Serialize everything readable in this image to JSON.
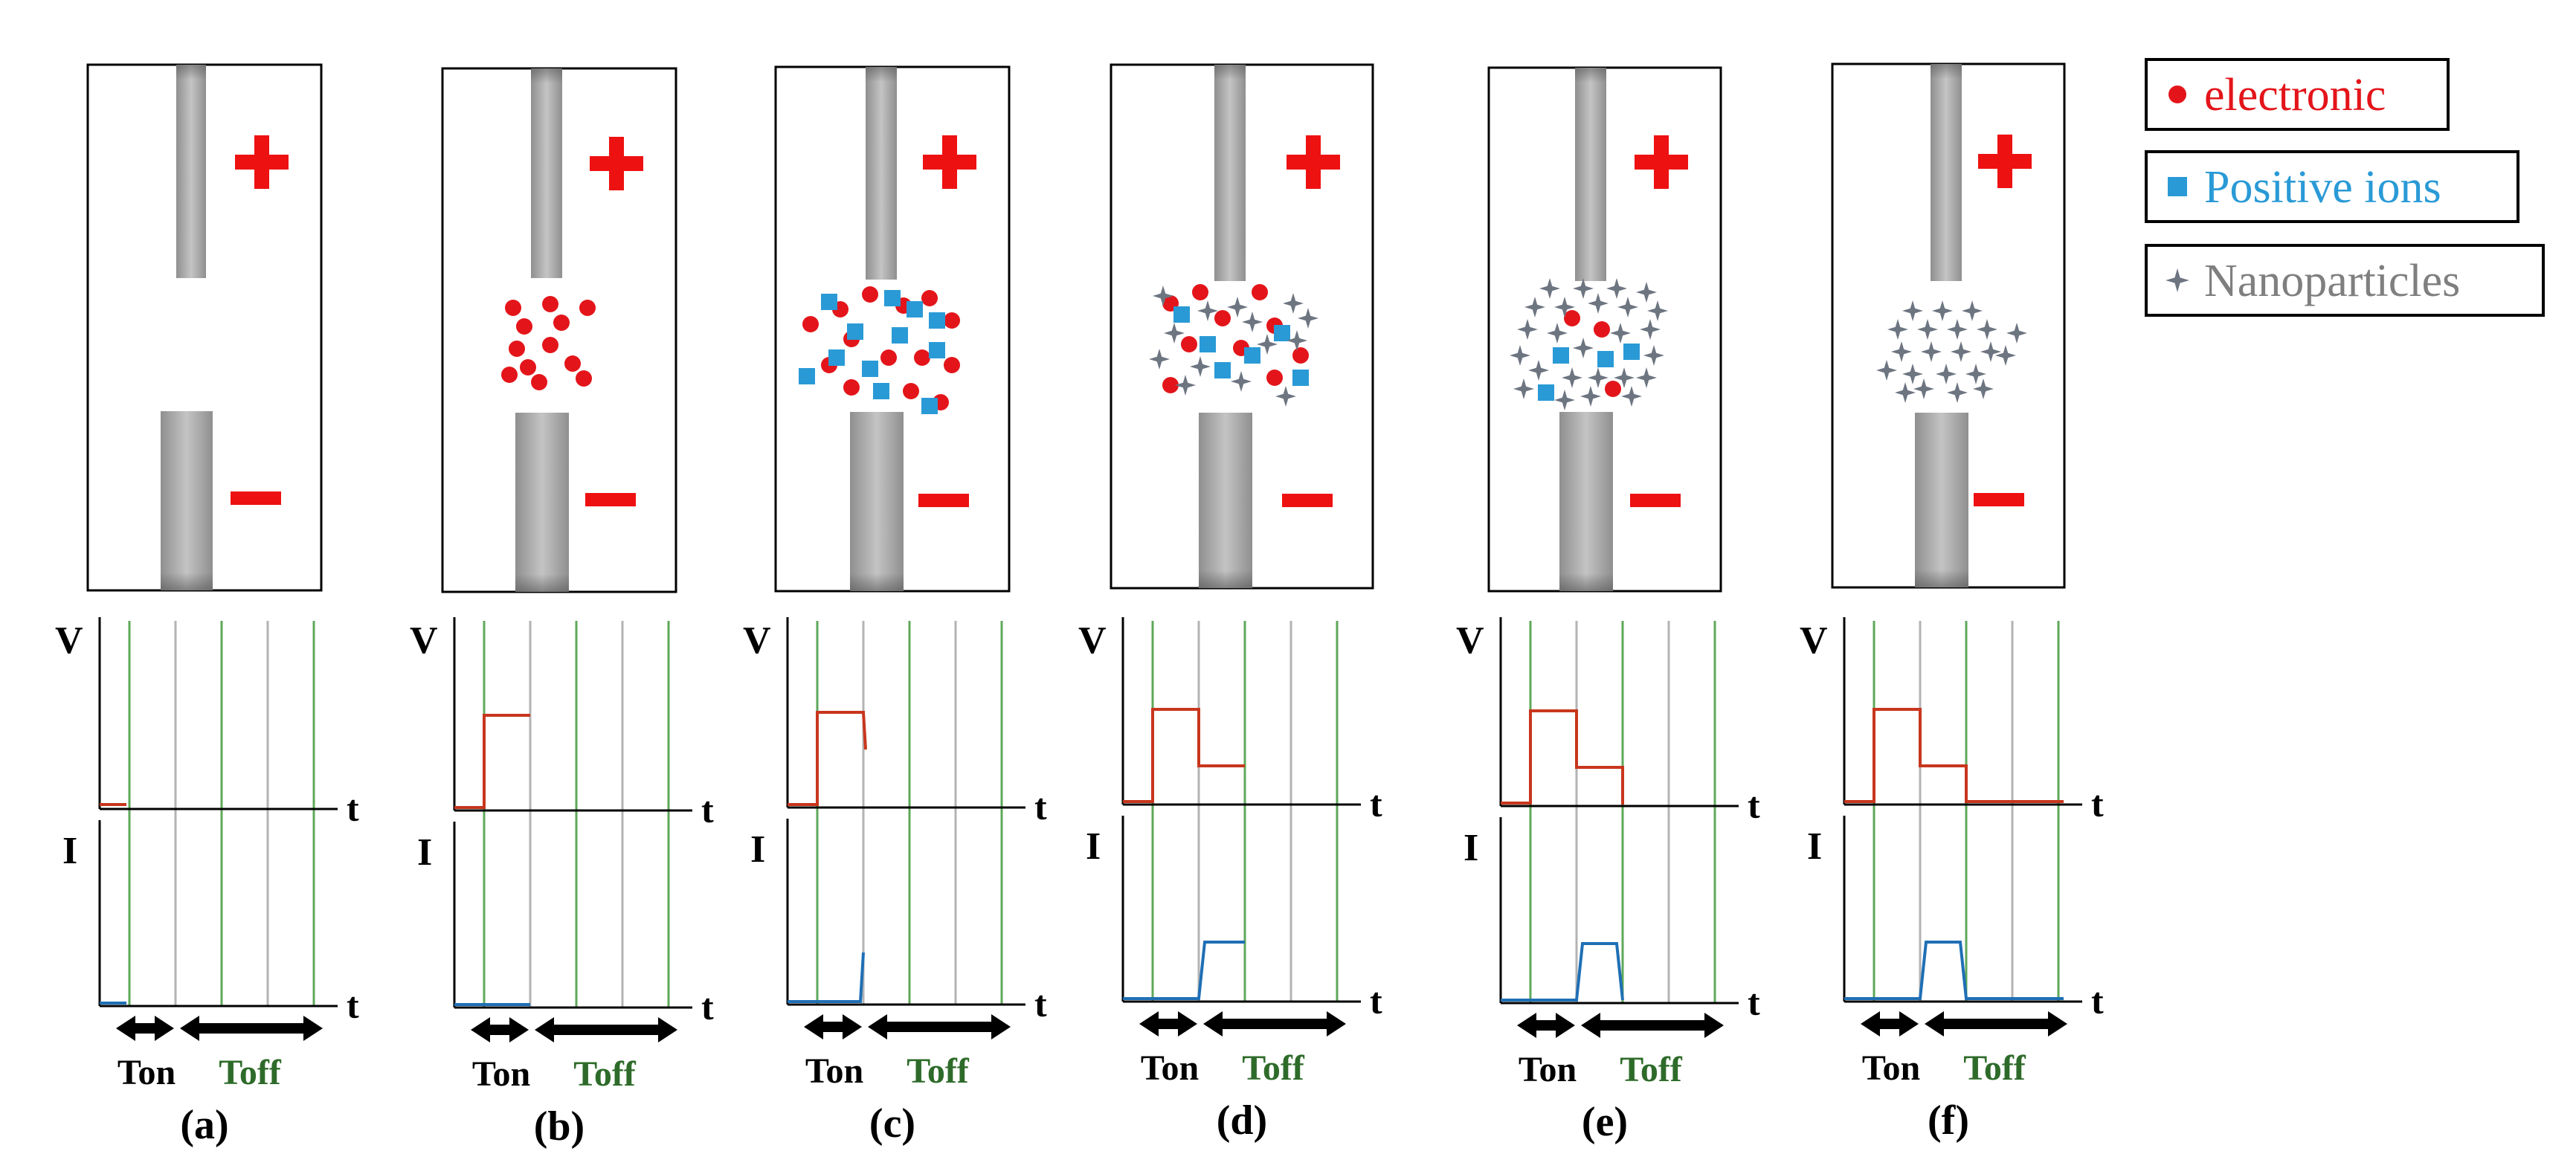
{
  "figure": {
    "panels": [
      {
        "label": "(a)",
        "stage": 0
      },
      {
        "label": "(b)",
        "stage": 1
      },
      {
        "label": "(c)",
        "stage": 2
      },
      {
        "label": "(d)",
        "stage": 3
      },
      {
        "label": "(e)",
        "stage": 4
      },
      {
        "label": "(f)",
        "stage": 5
      }
    ],
    "electrode_signs": {
      "positive": "+",
      "negative": "−"
    },
    "axis_labels": {
      "voltage": "V",
      "current": "I",
      "time": "t"
    },
    "interval_labels": {
      "on": "Ton",
      "off": "Toff"
    },
    "legend": [
      {
        "key": "electron",
        "label": "electronic",
        "color": "#e3151a"
      },
      {
        "key": "ion",
        "label": "Positive ions",
        "color": "#2a9ad6"
      },
      {
        "key": "nano",
        "label": "Nanoparticles",
        "color": "#8a8a8a"
      }
    ],
    "colors": {
      "voltage_trace": "#c8361d",
      "current_trace": "#1f6fb5",
      "on_gridline": "#5ea85a",
      "off_gridline": "#b3b3b3",
      "ton_text": "#000000",
      "toff_text": "#2e6b2a",
      "sign": "#ee1111"
    }
  }
}
